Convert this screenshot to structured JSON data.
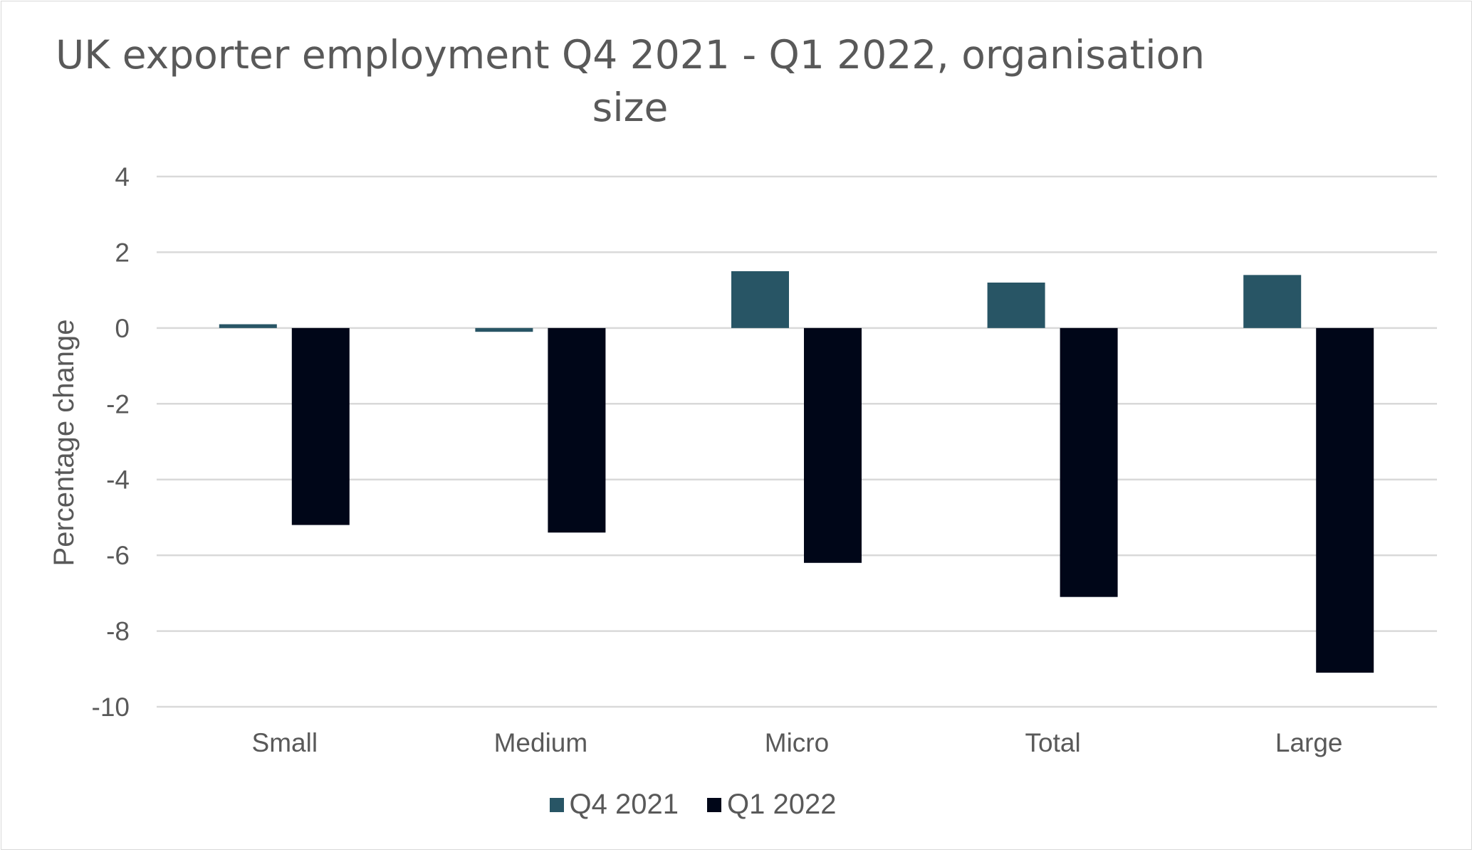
{
  "chart_data": {
    "type": "bar",
    "title": "UK exporter employment Q4 2021 - Q1 2022, organisation size",
    "title_lines": [
      "UK exporter employment Q4 2021 - Q1 2022, organisation",
      "size"
    ],
    "xlabel": "",
    "ylabel": "Percentage change",
    "ylim": [
      -10,
      4
    ],
    "yticks": [
      4,
      2,
      0,
      -2,
      -4,
      -6,
      -8,
      -10
    ],
    "grid": true,
    "legend_position": "bottom",
    "categories": [
      "Small",
      "Medium",
      "Micro",
      "Total",
      "Large"
    ],
    "series": [
      {
        "name": "Q4 2021",
        "color": "#285565",
        "values": [
          0.1,
          -0.1,
          1.5,
          1.2,
          1.4
        ]
      },
      {
        "name": "Q1 2022",
        "color": "#000618",
        "values": [
          -5.2,
          -5.4,
          -6.2,
          -7.1,
          -9.1
        ]
      }
    ]
  }
}
